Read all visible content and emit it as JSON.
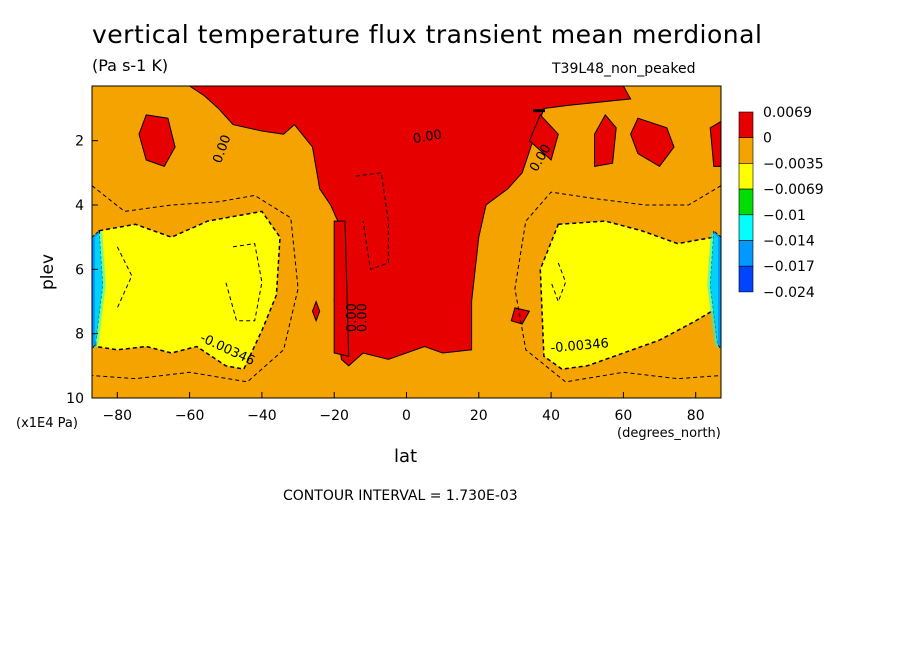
{
  "chart_data": {
    "type": "heatmap",
    "title": "vertical temperature flux transient mean merdional",
    "units": "(Pa s-1 K)",
    "run_label": "T39L48_non_peaked",
    "xlabel": "lat",
    "x_unit": "(degrees_north)",
    "ylabel": "plev",
    "y_unit": "(x1E4 Pa)",
    "xlim": [
      -87,
      87
    ],
    "ylim": [
      0.3,
      10
    ],
    "y_inverted": true,
    "x_ticks": [
      -80,
      -60,
      -40,
      -20,
      0,
      20,
      40,
      60,
      80
    ],
    "y_ticks": [
      2,
      4,
      6,
      8,
      10
    ],
    "contour_interval_text": "CONTOUR INTERVAL = 1.730E-03",
    "contour_labels": [
      "0.00",
      "0.00",
      "0.00",
      "0.00",
      "0.00",
      "-0.00346",
      "-0.00346"
    ],
    "legend": {
      "placement": "right",
      "levels": [
        "0.0069",
        "0",
        "-0.0035",
        "-0.0069",
        "-0.01",
        "-0.014",
        "-0.017",
        "-0.024"
      ],
      "colors": [
        "#e60000",
        "#f5a300",
        "#ffff00",
        "#00dd00",
        "#00ffff",
        "#0099ff",
        "#0044ff"
      ]
    },
    "fill_colors": {
      "positive": "#e60000",
      "near_zero": "#f5a300",
      "moderate_negative": "#ffff00",
      "strong_negative_1": "#00dd00",
      "strong_negative_2": "#00ffff",
      "strong_negative_3": "#0099ff",
      "strong_negative_4": "#0044ff"
    },
    "regions": {
      "positive": [
        [
          [
            -60,
            0.3
          ],
          [
            60,
            0.3
          ],
          [
            62,
            0.7
          ],
          [
            45,
            0.9
          ],
          [
            38,
            1.0
          ],
          [
            35,
            2.0
          ],
          [
            32,
            3.0
          ],
          [
            28,
            3.5
          ],
          [
            22,
            4.0
          ],
          [
            20,
            5.0
          ],
          [
            18,
            7.0
          ],
          [
            18,
            8.5
          ],
          [
            10,
            8.6
          ],
          [
            5,
            8.4
          ],
          [
            -5,
            8.8
          ],
          [
            -12,
            8.6
          ],
          [
            -16,
            9.0
          ],
          [
            -18,
            8.8
          ],
          [
            -20,
            7.0
          ],
          [
            -19,
            4.5
          ],
          [
            -21,
            4.0
          ],
          [
            -24,
            3.5
          ],
          [
            -26,
            2.2
          ],
          [
            -31,
            1.5
          ],
          [
            -34,
            1.8
          ],
          [
            -40,
            1.7
          ],
          [
            -48,
            1.5
          ],
          [
            -52,
            1.0
          ],
          [
            -56,
            0.6
          ]
        ],
        [
          [
            -20,
            8.6
          ],
          [
            -16,
            8.7
          ],
          [
            -17,
            4.5
          ],
          [
            -20,
            4.5
          ]
        ],
        [
          [
            -72,
            1.2
          ],
          [
            -66,
            1.3
          ],
          [
            -64,
            2.2
          ],
          [
            -67,
            2.8
          ],
          [
            -72,
            2.6
          ],
          [
            -74,
            1.8
          ]
        ],
        [
          [
            64,
            1.3
          ],
          [
            72,
            1.6
          ],
          [
            74,
            2.2
          ],
          [
            70,
            2.8
          ],
          [
            64,
            2.4
          ],
          [
            62,
            1.8
          ]
        ],
        [
          [
            40,
            2.6
          ],
          [
            42,
            1.8
          ],
          [
            37,
            1.2
          ],
          [
            34,
            2.0
          ]
        ],
        [
          [
            52,
            2.8
          ],
          [
            57,
            2.7
          ],
          [
            58,
            1.6
          ],
          [
            55,
            1.2
          ],
          [
            52,
            1.8
          ]
        ],
        [
          [
            84,
            1.6
          ],
          [
            87,
            1.4
          ],
          [
            87,
            2.8
          ],
          [
            85,
            2.8
          ]
        ],
        [
          [
            -26,
            7.3
          ],
          [
            -25,
            7.0
          ],
          [
            -24,
            7.3
          ],
          [
            -25,
            7.6
          ]
        ],
        [
          [
            30,
            7.2
          ],
          [
            34,
            7.3
          ],
          [
            32,
            7.7
          ],
          [
            29,
            7.6
          ]
        ]
      ],
      "moderate_negative": [
        [
          [
            -85,
            4.8
          ],
          [
            -75,
            4.6
          ],
          [
            -65,
            5.0
          ],
          [
            -55,
            4.5
          ],
          [
            -40,
            4.2
          ],
          [
            -35,
            5.0
          ],
          [
            -36,
            6.8
          ],
          [
            -40,
            7.9
          ],
          [
            -45,
            9.1
          ],
          [
            -50,
            9.0
          ],
          [
            -58,
            8.4
          ],
          [
            -65,
            8.6
          ],
          [
            -72,
            8.4
          ],
          [
            -80,
            8.5
          ],
          [
            -86,
            8.4
          ]
        ],
        [
          [
            42,
            4.6
          ],
          [
            55,
            4.5
          ],
          [
            65,
            4.8
          ],
          [
            75,
            5.2
          ],
          [
            85,
            5.0
          ],
          [
            86,
            7.2
          ],
          [
            80,
            7.6
          ],
          [
            70,
            8.2
          ],
          [
            60,
            8.6
          ],
          [
            50,
            9.0
          ],
          [
            43,
            9.1
          ],
          [
            38,
            8.7
          ],
          [
            37,
            6.0
          ]
        ]
      ],
      "strong_negative": [
        [
          [
            -87,
            5.0
          ],
          [
            -85,
            4.8
          ],
          [
            -84,
            6.5
          ],
          [
            -86,
            8.3
          ],
          [
            -87,
            8.5
          ]
        ],
        [
          [
            87,
            5.0
          ],
          [
            85,
            4.8
          ],
          [
            84,
            6.5
          ],
          [
            86,
            8.3
          ],
          [
            87,
            8.5
          ]
        ]
      ]
    }
  }
}
